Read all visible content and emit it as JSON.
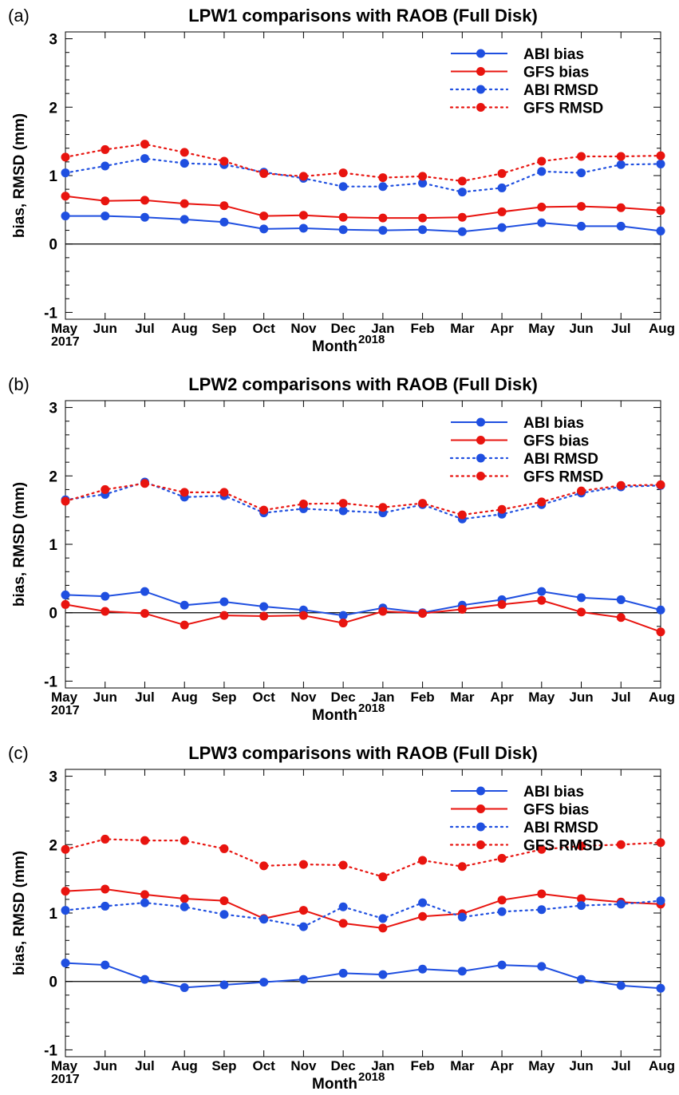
{
  "chart_data": [
    {
      "type": "line",
      "panel_label": "(a)",
      "title": "LPW1 comparisons with RAOB (Full Disk)",
      "ylabel": "bias, RMSD (mm)",
      "xlabel": "Month",
      "x_year_start": "2017",
      "x_year_end": "2018",
      "categories": [
        "May",
        "Jun",
        "Jul",
        "Aug",
        "Sep",
        "Oct",
        "Nov",
        "Dec",
        "Jan",
        "Feb",
        "Mar",
        "Apr",
        "May",
        "Jun",
        "Jul",
        "Aug"
      ],
      "ylim": [
        -1.1,
        3.1
      ],
      "yticks": [
        -1,
        0,
        1,
        2,
        3
      ],
      "legend_position": "top-right",
      "series": [
        {
          "name": "ABI bias",
          "color": "#1F4FE0",
          "style": "solid",
          "values": [
            0.41,
            0.41,
            0.39,
            0.36,
            0.32,
            0.22,
            0.23,
            0.21,
            0.2,
            0.21,
            0.18,
            0.24,
            0.31,
            0.26,
            0.26,
            0.19
          ]
        },
        {
          "name": "GFS bias",
          "color": "#E8140F",
          "style": "solid",
          "values": [
            0.7,
            0.63,
            0.64,
            0.59,
            0.56,
            0.41,
            0.42,
            0.39,
            0.38,
            0.38,
            0.39,
            0.47,
            0.54,
            0.55,
            0.53,
            0.49
          ]
        },
        {
          "name": "ABI RMSD",
          "color": "#1F4FE0",
          "style": "dotted",
          "values": [
            1.04,
            1.14,
            1.25,
            1.18,
            1.16,
            1.05,
            0.96,
            0.84,
            0.84,
            0.89,
            0.76,
            0.82,
            1.06,
            1.04,
            1.16,
            1.17
          ]
        },
        {
          "name": "GFS RMSD",
          "color": "#E8140F",
          "style": "dotted",
          "values": [
            1.27,
            1.38,
            1.46,
            1.34,
            1.21,
            1.03,
            0.99,
            1.04,
            0.97,
            0.99,
            0.92,
            1.03,
            1.21,
            1.28,
            1.28,
            1.29
          ]
        }
      ]
    },
    {
      "type": "line",
      "panel_label": "(b)",
      "title": "LPW2 comparisons with RAOB (Full Disk)",
      "ylabel": "bias, RMSD (mm)",
      "xlabel": "Month",
      "x_year_start": "2017",
      "x_year_end": "2018",
      "categories": [
        "May",
        "Jun",
        "Jul",
        "Aug",
        "Sep",
        "Oct",
        "Nov",
        "Dec",
        "Jan",
        "Feb",
        "Mar",
        "Apr",
        "May",
        "Jun",
        "Jul",
        "Aug"
      ],
      "ylim": [
        -1.1,
        3.1
      ],
      "yticks": [
        -1,
        0,
        1,
        2,
        3
      ],
      "legend_position": "top-right",
      "series": [
        {
          "name": "ABI bias",
          "color": "#1F4FE0",
          "style": "solid",
          "values": [
            0.26,
            0.24,
            0.31,
            0.11,
            0.16,
            0.09,
            0.04,
            -0.04,
            0.07,
            0.0,
            0.11,
            0.19,
            0.31,
            0.22,
            0.19,
            0.04
          ]
        },
        {
          "name": "GFS bias",
          "color": "#E8140F",
          "style": "solid",
          "values": [
            0.12,
            0.02,
            -0.01,
            -0.18,
            -0.04,
            -0.05,
            -0.04,
            -0.15,
            0.02,
            -0.01,
            0.05,
            0.12,
            0.18,
            0.01,
            -0.07,
            -0.28
          ]
        },
        {
          "name": "ABI RMSD",
          "color": "#1F4FE0",
          "style": "dotted",
          "values": [
            1.65,
            1.73,
            1.91,
            1.69,
            1.71,
            1.46,
            1.52,
            1.49,
            1.46,
            1.58,
            1.37,
            1.44,
            1.58,
            1.75,
            1.84,
            1.86
          ]
        },
        {
          "name": "GFS RMSD",
          "color": "#E8140F",
          "style": "dotted",
          "values": [
            1.63,
            1.8,
            1.89,
            1.76,
            1.76,
            1.5,
            1.59,
            1.6,
            1.54,
            1.6,
            1.43,
            1.51,
            1.62,
            1.78,
            1.86,
            1.87
          ]
        }
      ]
    },
    {
      "type": "line",
      "panel_label": "(c)",
      "title": "LPW3 comparisons with RAOB (Full Disk)",
      "ylabel": "bias, RMSD (mm)",
      "xlabel": "Month",
      "x_year_start": "2017",
      "x_year_end": "2018",
      "categories": [
        "May",
        "Jun",
        "Jul",
        "Aug",
        "Sep",
        "Oct",
        "Nov",
        "Dec",
        "Jan",
        "Feb",
        "Mar",
        "Apr",
        "May",
        "Jun",
        "Jul",
        "Aug"
      ],
      "ylim": [
        -1.1,
        3.1
      ],
      "yticks": [
        -1,
        0,
        1,
        2,
        3
      ],
      "legend_position": "top-right",
      "series": [
        {
          "name": "ABI bias",
          "color": "#1F4FE0",
          "style": "solid",
          "values": [
            0.27,
            0.24,
            0.03,
            -0.09,
            -0.05,
            -0.01,
            0.03,
            0.12,
            0.1,
            0.18,
            0.15,
            0.24,
            0.22,
            0.03,
            -0.06,
            -0.1
          ]
        },
        {
          "name": "GFS bias",
          "color": "#E8140F",
          "style": "solid",
          "values": [
            1.32,
            1.35,
            1.27,
            1.21,
            1.18,
            0.92,
            1.04,
            0.85,
            0.78,
            0.95,
            0.99,
            1.19,
            1.28,
            1.21,
            1.16,
            1.13
          ]
        },
        {
          "name": "ABI RMSD",
          "color": "#1F4FE0",
          "style": "dotted",
          "values": [
            1.04,
            1.1,
            1.15,
            1.09,
            0.98,
            0.91,
            0.8,
            1.09,
            0.92,
            1.15,
            0.94,
            1.02,
            1.05,
            1.11,
            1.13,
            1.18
          ]
        },
        {
          "name": "GFS RMSD",
          "color": "#E8140F",
          "style": "dotted",
          "values": [
            1.93,
            2.08,
            2.06,
            2.06,
            1.94,
            1.69,
            1.71,
            1.7,
            1.53,
            1.77,
            1.68,
            1.8,
            1.93,
            1.98,
            2.0,
            2.03
          ]
        }
      ]
    }
  ]
}
